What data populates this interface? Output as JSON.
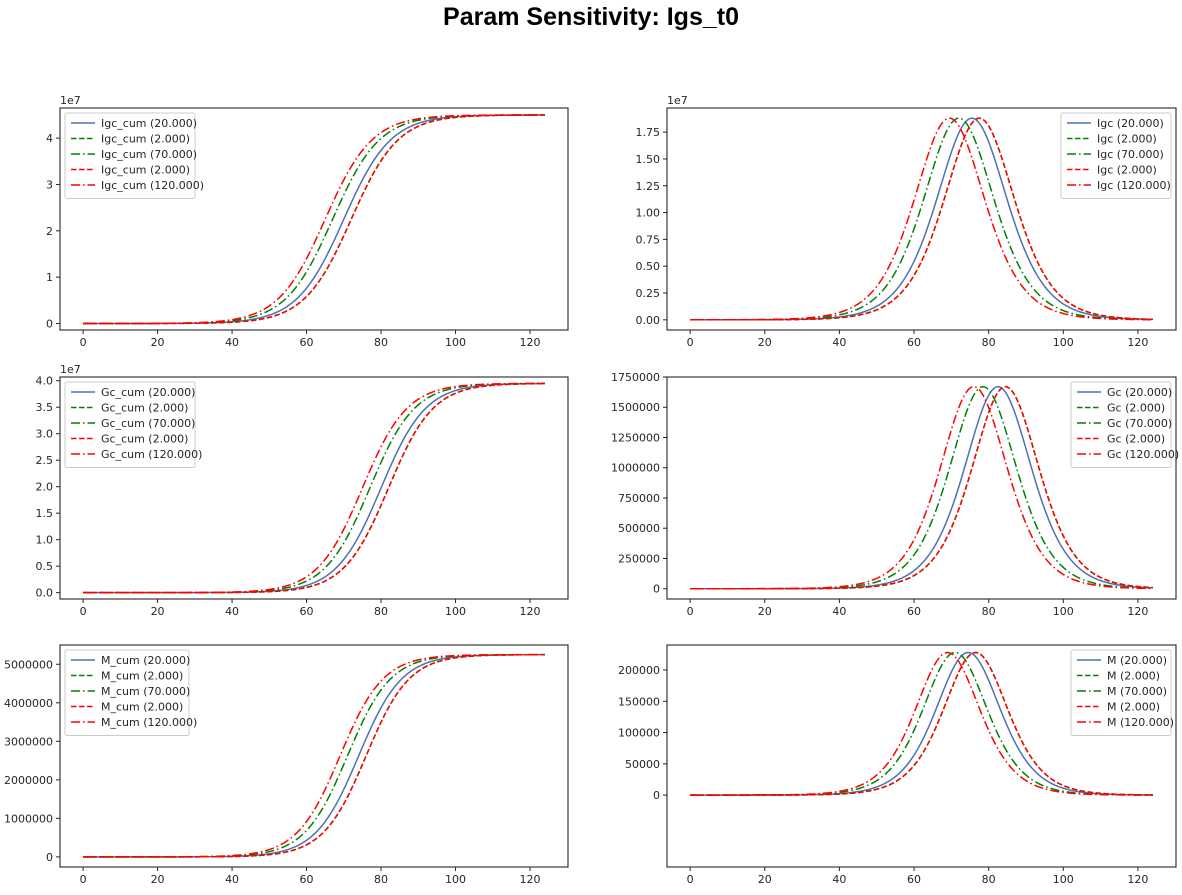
{
  "figure": {
    "title": "Param Sensitivity: Igs_t0"
  },
  "styles": {
    "series": [
      {
        "color": "#4c72b0",
        "dash": "solid"
      },
      {
        "color": "#008000",
        "dash": "dashed"
      },
      {
        "color": "#008000",
        "dash": "dashdot"
      },
      {
        "color": "#ff0000",
        "dash": "dashed"
      },
      {
        "color": "#ff0000",
        "dash": "dashdot"
      }
    ]
  },
  "chart_data": [
    {
      "type": "line",
      "title": "",
      "xlabel": "",
      "ylabel": "",
      "xlim": [
        -6.2,
        130.2
      ],
      "ylim": [
        -1400000,
        46500000
      ],
      "x_ticks": [
        0,
        20,
        40,
        60,
        80,
        100,
        120
      ],
      "y_ticks": [
        0,
        10000000,
        20000000,
        30000000,
        40000000
      ],
      "y_tick_labels": [
        "0",
        "1",
        "2",
        "3",
        "4"
      ],
      "offset_text": "1e7",
      "legend_position": "upper-left",
      "shape": "sigmoid",
      "x_range": [
        0,
        124
      ],
      "series": [
        {
          "name": "Igc_cum (20.000)",
          "center": 70,
          "scale": 6.3,
          "amplitude": 45000000
        },
        {
          "name": "Igc_cum (2.000)",
          "center": 72,
          "scale": 6.3,
          "amplitude": 45000000
        },
        {
          "name": "Igc_cum (70.000)",
          "center": 67,
          "scale": 6.3,
          "amplitude": 45000000
        },
        {
          "name": "Igc_cum (2.000)",
          "center": 72,
          "scale": 6.3,
          "amplitude": 45000000
        },
        {
          "name": "Igc_cum (120.000)",
          "center": 65,
          "scale": 6.3,
          "amplitude": 45000000
        }
      ]
    },
    {
      "type": "line",
      "title": "",
      "xlabel": "",
      "ylabel": "",
      "xlim": [
        -6.2,
        130.2
      ],
      "ylim": [
        -950000,
        19750000
      ],
      "x_ticks": [
        0,
        20,
        40,
        60,
        80,
        100,
        120
      ],
      "y_ticks": [
        0,
        2500000,
        5000000,
        7500000,
        10000000,
        12500000,
        15000000,
        17500000
      ],
      "y_tick_labels": [
        "0.00",
        "0.25",
        "0.50",
        "0.75",
        "1.00",
        "1.25",
        "1.50",
        "1.75"
      ],
      "offset_text": "1e7",
      "legend_position": "upper-right",
      "shape": "bell",
      "x_range": [
        0,
        124
      ],
      "series": [
        {
          "name": "Igc (20.000)",
          "center": 75.5,
          "scale": 6.3,
          "amplitude": 18800000
        },
        {
          "name": "Igc (2.000)",
          "center": 77.5,
          "scale": 6.3,
          "amplitude": 18800000
        },
        {
          "name": "Igc (70.000)",
          "center": 72,
          "scale": 6.3,
          "amplitude": 18800000
        },
        {
          "name": "Igc (2.000)",
          "center": 77.5,
          "scale": 6.3,
          "amplitude": 18800000
        },
        {
          "name": "Igc (120.000)",
          "center": 69.5,
          "scale": 6.3,
          "amplitude": 18800000
        }
      ]
    },
    {
      "type": "line",
      "title": "",
      "xlabel": "",
      "ylabel": "",
      "xlim": [
        -6.2,
        130.2
      ],
      "ylim": [
        -1200000,
        40700000
      ],
      "x_ticks": [
        0,
        20,
        40,
        60,
        80,
        100,
        120
      ],
      "y_ticks": [
        0,
        5000000,
        10000000,
        15000000,
        20000000,
        25000000,
        30000000,
        35000000,
        40000000
      ],
      "y_tick_labels": [
        "0.0",
        "0.5",
        "1.0",
        "1.5",
        "2.0",
        "2.5",
        "3.0",
        "3.5",
        "4.0"
      ],
      "offset_text": "1e7",
      "legend_position": "upper-left",
      "shape": "sigmoid",
      "x_range": [
        0,
        124
      ],
      "series": [
        {
          "name": "Gc_cum (20.000)",
          "center": 80,
          "scale": 6.0,
          "amplitude": 39500000
        },
        {
          "name": "Gc_cum (2.000)",
          "center": 82,
          "scale": 6.0,
          "amplitude": 39500000
        },
        {
          "name": "Gc_cum (70.000)",
          "center": 77,
          "scale": 6.0,
          "amplitude": 39500000
        },
        {
          "name": "Gc_cum (2.000)",
          "center": 82,
          "scale": 6.0,
          "amplitude": 39500000
        },
        {
          "name": "Gc_cum (120.000)",
          "center": 75,
          "scale": 6.0,
          "amplitude": 39500000
        }
      ]
    },
    {
      "type": "line",
      "title": "",
      "xlabel": "",
      "ylabel": "",
      "xlim": [
        -6.2,
        130.2
      ],
      "ylim": [
        -85000,
        1750000
      ],
      "x_ticks": [
        0,
        20,
        40,
        60,
        80,
        100,
        120
      ],
      "y_ticks": [
        0,
        250000,
        500000,
        750000,
        1000000,
        1250000,
        1500000,
        1750000
      ],
      "y_tick_labels": [
        "0",
        "250000",
        "500000",
        "750000",
        "1000000",
        "1250000",
        "1500000",
        "1750000"
      ],
      "offset_text": "",
      "legend_position": "upper-right",
      "shape": "bell",
      "x_range": [
        0,
        124
      ],
      "series": [
        {
          "name": "Gc (20.000)",
          "center": 82.5,
          "scale": 6.0,
          "amplitude": 1670000
        },
        {
          "name": "Gc (2.000)",
          "center": 84.5,
          "scale": 6.0,
          "amplitude": 1670000
        },
        {
          "name": "Gc (70.000)",
          "center": 78.5,
          "scale": 6.0,
          "amplitude": 1670000
        },
        {
          "name": "Gc (2.000)",
          "center": 84.5,
          "scale": 6.0,
          "amplitude": 1670000
        },
        {
          "name": "Gc (120.000)",
          "center": 76,
          "scale": 6.0,
          "amplitude": 1670000
        }
      ]
    },
    {
      "type": "line",
      "title": "",
      "xlabel": "",
      "ylabel": "",
      "xlim": [
        -6.2,
        130.2
      ],
      "ylim": [
        -262000,
        5500000
      ],
      "x_ticks": [
        0,
        20,
        40,
        60,
        80,
        100,
        120
      ],
      "y_ticks": [
        0,
        1000000,
        2000000,
        3000000,
        4000000,
        5000000
      ],
      "y_tick_labels": [
        "0",
        "1000000",
        "2000000",
        "3000000",
        "4000000",
        "5000000"
      ],
      "offset_text": "",
      "legend_position": "upper-left",
      "shape": "sigmoid",
      "x_range": [
        0,
        124
      ],
      "series": [
        {
          "name": "M_cum (20.000)",
          "center": 74,
          "scale": 5.8,
          "amplitude": 5250000
        },
        {
          "name": "M_cum (2.000)",
          "center": 76,
          "scale": 5.8,
          "amplitude": 5250000
        },
        {
          "name": "M_cum (70.000)",
          "center": 71,
          "scale": 5.8,
          "amplitude": 5250000
        },
        {
          "name": "M_cum (2.000)",
          "center": 76,
          "scale": 5.8,
          "amplitude": 5250000
        },
        {
          "name": "M_cum (120.000)",
          "center": 69,
          "scale": 5.8,
          "amplitude": 5250000
        }
      ]
    },
    {
      "type": "line",
      "title": "",
      "xlabel": "",
      "ylabel": "",
      "xlim": [
        -6.2,
        130.2
      ],
      "ylim": [
        -115000.0,
        240000
      ],
      "x_ticks": [
        0,
        20,
        40,
        60,
        80,
        100,
        120
      ],
      "y_ticks": [
        0,
        50000,
        100000,
        150000,
        200000
      ],
      "y_tick_labels": [
        "0",
        "50000",
        "100000",
        "150000",
        "200000"
      ],
      "offset_text": "",
      "legend_position": "upper-right",
      "shape": "bell",
      "x_range": [
        0,
        124
      ],
      "series": [
        {
          "name": "M (20.000)",
          "center": 74.5,
          "scale": 5.8,
          "amplitude": 228000
        },
        {
          "name": "M (2.000)",
          "center": 76.5,
          "scale": 5.8,
          "amplitude": 228000
        },
        {
          "name": "M (70.000)",
          "center": 71,
          "scale": 5.8,
          "amplitude": 228000
        },
        {
          "name": "M (2.000)",
          "center": 76.5,
          "scale": 5.8,
          "amplitude": 228000
        },
        {
          "name": "M (120.000)",
          "center": 69,
          "scale": 5.8,
          "amplitude": 228000
        }
      ]
    }
  ]
}
